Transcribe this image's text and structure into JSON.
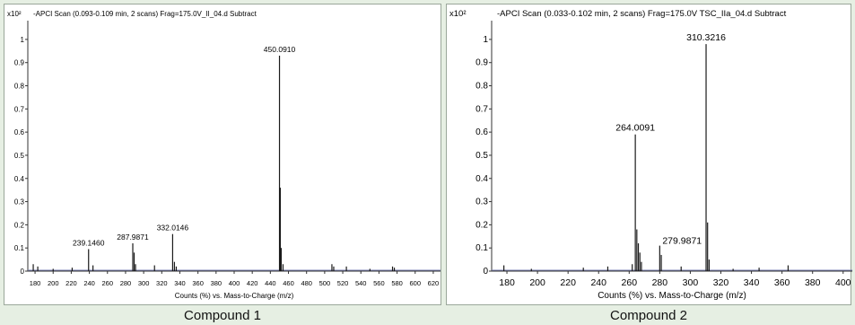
{
  "chart_data": [
    {
      "type": "line",
      "title": "-APCI Scan (0.093-0.109 min, 2 scans) Frag=175.0V_II_04.d  Subtract",
      "scale_label": "x10²",
      "xlabel": "Counts (%) vs. Mass-to-Charge (m/z)",
      "caption": "Compound 1",
      "xlim": [
        172,
        628
      ],
      "ylim": [
        0,
        1.05
      ],
      "xticks": [
        180,
        200,
        220,
        240,
        260,
        280,
        300,
        320,
        340,
        360,
        380,
        400,
        420,
        440,
        460,
        480,
        500,
        520,
        540,
        560,
        580,
        600,
        620
      ],
      "yticks": [
        0,
        0.1,
        0.2,
        0.3,
        0.4,
        0.5,
        0.6,
        0.7,
        0.8,
        0.9,
        1
      ],
      "peaks": [
        {
          "x": 178,
          "y": 0.03
        },
        {
          "x": 183,
          "y": 0.02
        },
        {
          "x": 200,
          "y": 0.01
        },
        {
          "x": 221,
          "y": 0.015
        },
        {
          "x": 239.146,
          "y": 0.095
        },
        {
          "x": 244,
          "y": 0.025
        },
        {
          "x": 287.9871,
          "y": 0.12
        },
        {
          "x": 289.5,
          "y": 0.08
        },
        {
          "x": 291,
          "y": 0.03
        },
        {
          "x": 312,
          "y": 0.025
        },
        {
          "x": 332.0146,
          "y": 0.16
        },
        {
          "x": 334,
          "y": 0.04
        },
        {
          "x": 336,
          "y": 0.02
        },
        {
          "x": 450.091,
          "y": 0.93
        },
        {
          "x": 451,
          "y": 0.36
        },
        {
          "x": 452,
          "y": 0.1
        },
        {
          "x": 454,
          "y": 0.03
        },
        {
          "x": 508,
          "y": 0.03
        },
        {
          "x": 510,
          "y": 0.02
        },
        {
          "x": 524,
          "y": 0.02
        },
        {
          "x": 550,
          "y": 0.01
        },
        {
          "x": 575,
          "y": 0.02
        },
        {
          "x": 577,
          "y": 0.015
        }
      ],
      "peak_labels": [
        {
          "x": 239.146,
          "y": 0.095,
          "text": "239.1460"
        },
        {
          "x": 287.9871,
          "y": 0.12,
          "text": "287.9871"
        },
        {
          "x": 332.0146,
          "y": 0.16,
          "text": "332.0146"
        },
        {
          "x": 450.091,
          "y": 0.93,
          "text": "450.0910"
        }
      ]
    },
    {
      "type": "line",
      "title": "-APCI Scan (0.033-0.102 min, 2 scans) Frag=175.0V TSC_IIa_04.d  Subtract",
      "scale_label": "x10²",
      "xlabel": "Counts (%) vs. Mass-to-Charge (m/z)",
      "caption": "Compound 2",
      "xlim": [
        170,
        406
      ],
      "ylim": [
        0,
        1.05
      ],
      "xticks": [
        180,
        200,
        220,
        240,
        260,
        280,
        300,
        320,
        340,
        360,
        380,
        400
      ],
      "yticks": [
        0,
        0.1,
        0.2,
        0.3,
        0.4,
        0.5,
        0.6,
        0.7,
        0.8,
        0.9,
        1
      ],
      "peaks": [
        {
          "x": 178,
          "y": 0.025
        },
        {
          "x": 196,
          "y": 0.01
        },
        {
          "x": 230,
          "y": 0.015
        },
        {
          "x": 246,
          "y": 0.02
        },
        {
          "x": 262,
          "y": 0.03
        },
        {
          "x": 264.0091,
          "y": 0.59
        },
        {
          "x": 265,
          "y": 0.18
        },
        {
          "x": 266,
          "y": 0.12
        },
        {
          "x": 267,
          "y": 0.08
        },
        {
          "x": 268,
          "y": 0.04
        },
        {
          "x": 279.9871,
          "y": 0.11
        },
        {
          "x": 281,
          "y": 0.07
        },
        {
          "x": 294,
          "y": 0.02
        },
        {
          "x": 310.3216,
          "y": 0.98
        },
        {
          "x": 311.3,
          "y": 0.21
        },
        {
          "x": 312.3,
          "y": 0.05
        },
        {
          "x": 328,
          "y": 0.01
        },
        {
          "x": 345,
          "y": 0.015
        },
        {
          "x": 364,
          "y": 0.025
        }
      ],
      "peak_labels": [
        {
          "x": 264.0091,
          "y": 0.59,
          "text": "264.0091"
        },
        {
          "x": 279.9871,
          "y": 0.11,
          "text": "279.9871",
          "side": "right"
        },
        {
          "x": 310.3216,
          "y": 0.98,
          "text": "310.3216"
        }
      ]
    }
  ]
}
